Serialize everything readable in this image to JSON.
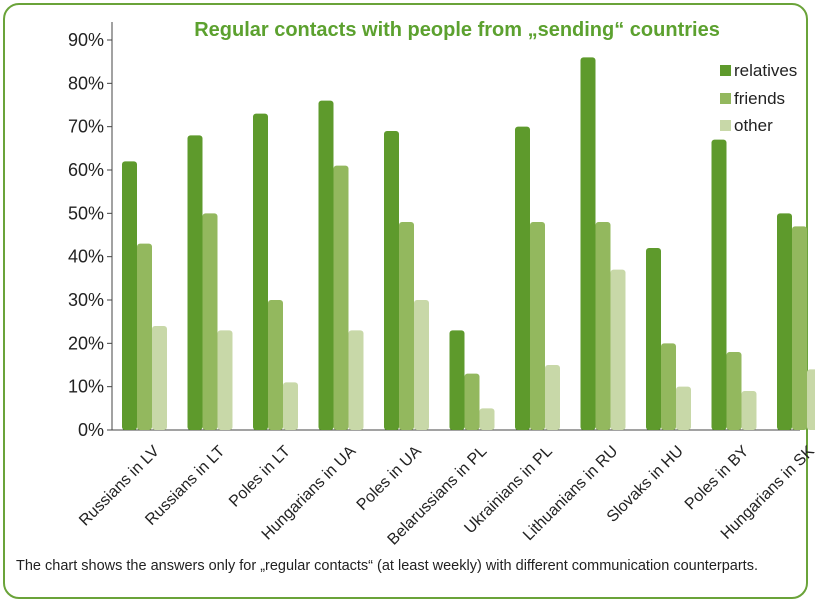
{
  "chart_data": {
    "type": "bar",
    "title": "Regular contacts with people from „sending“ countries",
    "categories": [
      "Russians in LV",
      "Russians in LT",
      "Poles in LT",
      "Hungarians in UA",
      "Poles in UA",
      "Belarussians in PL",
      "Ukrainians in PL",
      "Lithuanians in RU",
      "Slovaks in HU",
      "Poles in BY",
      "Hungarians in SK"
    ],
    "series": [
      {
        "name": "relatives",
        "color": "#5e9a2c",
        "values": [
          62,
          68,
          73,
          76,
          69,
          23,
          70,
          86,
          42,
          67,
          50
        ]
      },
      {
        "name": "friends",
        "color": "#93b85e",
        "values": [
          43,
          50,
          30,
          61,
          48,
          13,
          48,
          48,
          20,
          18,
          47
        ]
      },
      {
        "name": "other",
        "color": "#c8d8a8",
        "values": [
          24,
          23,
          11,
          23,
          30,
          5,
          15,
          37,
          10,
          9,
          14
        ]
      }
    ],
    "ylim": [
      0,
      90
    ],
    "yticks": [
      "0%",
      "10%",
      "20%",
      "30%",
      "40%",
      "50%",
      "60%",
      "70%",
      "80%",
      "90%"
    ],
    "legend_position": "top-right",
    "grid": false
  },
  "caption": "The chart shows the answers only for „regular contacts“ (at least weekly) with different  communication counterparts."
}
